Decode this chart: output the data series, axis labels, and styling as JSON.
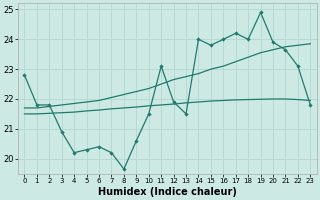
{
  "xlabel": "Humidex (Indice chaleur)",
  "background_color": "#cde9e4",
  "grid_color": "#b8d8d4",
  "line_color": "#1e7b6e",
  "x_values": [
    0,
    1,
    2,
    3,
    4,
    5,
    6,
    7,
    8,
    9,
    10,
    11,
    12,
    13,
    14,
    15,
    16,
    17,
    18,
    19,
    20,
    21,
    22,
    23
  ],
  "main_line": [
    22.8,
    21.8,
    21.8,
    20.9,
    20.2,
    20.3,
    20.4,
    20.2,
    19.65,
    20.6,
    21.5,
    23.1,
    21.9,
    21.5,
    24.0,
    23.8,
    24.0,
    24.2,
    24.0,
    24.9,
    23.9,
    23.65,
    23.1,
    21.8
  ],
  "trend_upper": [
    21.7,
    21.7,
    21.75,
    21.8,
    21.85,
    21.9,
    21.95,
    22.05,
    22.15,
    22.25,
    22.35,
    22.5,
    22.65,
    22.75,
    22.85,
    23.0,
    23.1,
    23.25,
    23.4,
    23.55,
    23.65,
    23.75,
    23.8,
    23.85
  ],
  "trend_lower": [
    21.5,
    21.5,
    21.52,
    21.54,
    21.56,
    21.6,
    21.63,
    21.67,
    21.7,
    21.73,
    21.77,
    21.8,
    21.83,
    21.87,
    21.9,
    21.93,
    21.95,
    21.97,
    21.98,
    21.99,
    22.0,
    22.0,
    21.98,
    21.95
  ],
  "ylim": [
    19.5,
    25.2
  ],
  "yticks": [
    20,
    21,
    22,
    23,
    24,
    25
  ],
  "xlim": [
    -0.5,
    23.5
  ],
  "figsize": [
    3.2,
    2.0
  ],
  "dpi": 100
}
